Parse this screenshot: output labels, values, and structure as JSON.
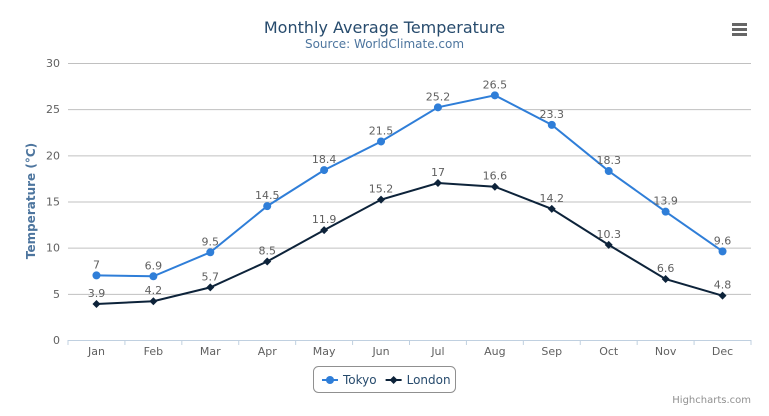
{
  "chart_data": {
    "type": "line",
    "title": "Monthly Average Temperature",
    "subtitle": "Source: WorldClimate.com",
    "ylabel": "Temperature (°C)",
    "xlabel": "",
    "categories": [
      "Jan",
      "Feb",
      "Mar",
      "Apr",
      "May",
      "Jun",
      "Jul",
      "Aug",
      "Sep",
      "Oct",
      "Nov",
      "Dec"
    ],
    "ylim": [
      0,
      30
    ],
    "yticks": [
      0,
      5,
      10,
      15,
      20,
      25,
      30
    ],
    "grid": true,
    "legend": "bottom-center",
    "data_labels": true,
    "series": [
      {
        "name": "Tokyo",
        "color": "#2f7ed8",
        "marker": "circle",
        "values": [
          7.0,
          6.9,
          9.5,
          14.5,
          18.4,
          21.5,
          25.2,
          26.5,
          23.3,
          18.3,
          13.9,
          9.6
        ]
      },
      {
        "name": "London",
        "color": "#0d233a",
        "marker": "diamond",
        "values": [
          3.9,
          4.2,
          5.7,
          8.5,
          11.9,
          15.2,
          17.0,
          16.6,
          14.2,
          10.3,
          6.6,
          4.8
        ]
      }
    ]
  },
  "credits": "Highcharts.com",
  "menu_icon": "hamburger-menu-icon",
  "colors": {
    "title": "#274b6d",
    "subtitle": "#4d759e",
    "grid": "#c0c0c0",
    "axis": "#c0d0e0"
  }
}
